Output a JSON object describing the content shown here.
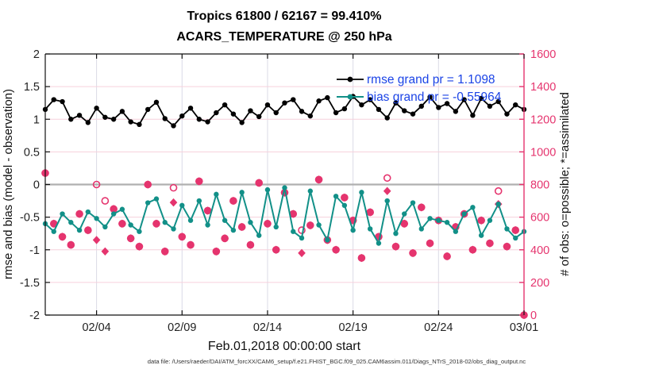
{
  "title": {
    "line1": "Tropics 61800 / 62167 = 99.410%",
    "line2": "ACARS_TEMPERATURE @ 250 hPa"
  },
  "legend": {
    "entries": [
      {
        "label": "rmse grand pr = 1.1098",
        "series": "rmse",
        "color": "#000000"
      },
      {
        "label": "bias grand pr = -0.55964",
        "series": "bias",
        "color": "#129088"
      }
    ],
    "text_color": "#1b43e6"
  },
  "footer": "data file: /Users/raeder/DAI/ATM_forcXX/CAM6_setup/f.e21.FHIST_BGC.f09_025.CAM6assim.011/Diags_NTrS_2018-02/obs_diag_output.nc",
  "colors": {
    "rmse": "#000000",
    "bias": "#129088",
    "obs_pink": "#e5346e",
    "grid_horizontal": "#f6d0dc",
    "grid_vertical": "#dbdbe6",
    "zero_line": "#b0b0b0",
    "axis_black": "#111111",
    "legend_blue": "#1b43e6"
  },
  "chart_data": {
    "type": "line",
    "title": "Tropics 61800 / 62167 = 99.410% — ACARS_TEMPERATURE @ 250 hPa",
    "xlabel": "Feb.01,2018 00:00:00 start",
    "ylabel_left": "rmse and bias (model - observation)",
    "ylabel_right": "# of obs: o=possible; *=assimilated",
    "x_start_day": 0,
    "x_end_day": 28,
    "x_step_days": 0.5,
    "x_ticks": [
      {
        "day": 3,
        "label": "02/04"
      },
      {
        "day": 8,
        "label": "02/09"
      },
      {
        "day": 13,
        "label": "02/14"
      },
      {
        "day": 18,
        "label": "02/19"
      },
      {
        "day": 23,
        "label": "02/24"
      },
      {
        "day": 28,
        "label": "03/01"
      }
    ],
    "ylim_left": [
      -2,
      2
    ],
    "yticks_left": [
      "-2",
      "-1.5",
      "-1",
      "-0.5",
      "0",
      "0.5",
      "1",
      "1.5",
      "2"
    ],
    "ylim_right": [
      0,
      1600
    ],
    "yticks_right": [
      "0",
      "200",
      "400",
      "600",
      "800",
      "1000",
      "1200",
      "1400",
      "1600"
    ],
    "grid": true,
    "legend_position": "top-right-inside",
    "series": [
      {
        "name": "rmse",
        "axis": "left",
        "style": "line-dot",
        "color": "#000000",
        "values": [
          1.15,
          1.3,
          1.27,
          1.0,
          1.06,
          0.95,
          1.17,
          1.03,
          1.0,
          1.12,
          0.96,
          0.92,
          1.15,
          1.26,
          1.01,
          0.9,
          1.05,
          1.17,
          1.0,
          0.96,
          1.1,
          1.22,
          1.08,
          0.95,
          1.13,
          1.04,
          1.22,
          1.1,
          1.25,
          1.3,
          1.12,
          1.05,
          1.28,
          1.33,
          1.1,
          1.16,
          1.35,
          1.22,
          1.3,
          1.15,
          1.02,
          1.25,
          1.13,
          1.08,
          1.2,
          1.34,
          1.18,
          1.24,
          1.12,
          1.3,
          1.06,
          1.32,
          1.2,
          1.27,
          1.08,
          1.22,
          1.15
        ]
      },
      {
        "name": "bias",
        "axis": "left",
        "style": "line-dot",
        "color": "#129088",
        "values": [
          -0.6,
          -0.72,
          -0.45,
          -0.58,
          -0.7,
          -0.42,
          -0.52,
          -0.65,
          -0.45,
          -0.38,
          -0.62,
          -0.72,
          -0.28,
          -0.22,
          -0.58,
          -0.68,
          -0.32,
          -0.55,
          -0.25,
          -0.62,
          -0.15,
          -0.55,
          -0.7,
          -0.12,
          -0.58,
          -0.78,
          -0.08,
          -0.65,
          -0.05,
          -0.72,
          -0.82,
          -0.1,
          -0.62,
          -0.85,
          -0.18,
          -0.32,
          -0.7,
          -0.12,
          -0.68,
          -0.9,
          -0.25,
          -0.75,
          -0.45,
          -0.28,
          -0.68,
          -0.52,
          -0.55,
          -0.58,
          -0.72,
          -0.45,
          -0.35,
          -0.78,
          -0.55,
          -0.3,
          -0.68,
          -0.82,
          -0.72
        ]
      },
      {
        "name": "possible",
        "axis": "right",
        "style": "open-circle",
        "color": "#e5346e",
        "values": [
          870,
          560,
          480,
          430,
          620,
          520,
          800,
          700,
          650,
          560,
          470,
          420,
          800,
          560,
          390,
          780,
          480,
          430,
          820,
          640,
          390,
          470,
          700,
          540,
          430,
          810,
          560,
          400,
          750,
          620,
          520,
          550,
          830,
          460,
          400,
          720,
          580,
          350,
          630,
          480,
          840,
          420,
          560,
          380,
          660,
          440,
          580,
          360,
          540,
          620,
          400,
          580,
          440,
          760,
          420,
          520,
          0
        ]
      },
      {
        "name": "assimilated",
        "axis": "right",
        "style": "asterisk",
        "color": "#e5346e",
        "values": [
          870,
          560,
          480,
          430,
          620,
          520,
          460,
          390,
          650,
          560,
          470,
          420,
          800,
          560,
          390,
          690,
          480,
          430,
          820,
          640,
          390,
          470,
          700,
          540,
          430,
          810,
          560,
          400,
          750,
          620,
          380,
          550,
          830,
          460,
          400,
          720,
          580,
          350,
          630,
          480,
          760,
          420,
          560,
          380,
          660,
          440,
          580,
          360,
          540,
          620,
          400,
          580,
          440,
          680,
          420,
          520,
          0
        ]
      }
    ]
  }
}
